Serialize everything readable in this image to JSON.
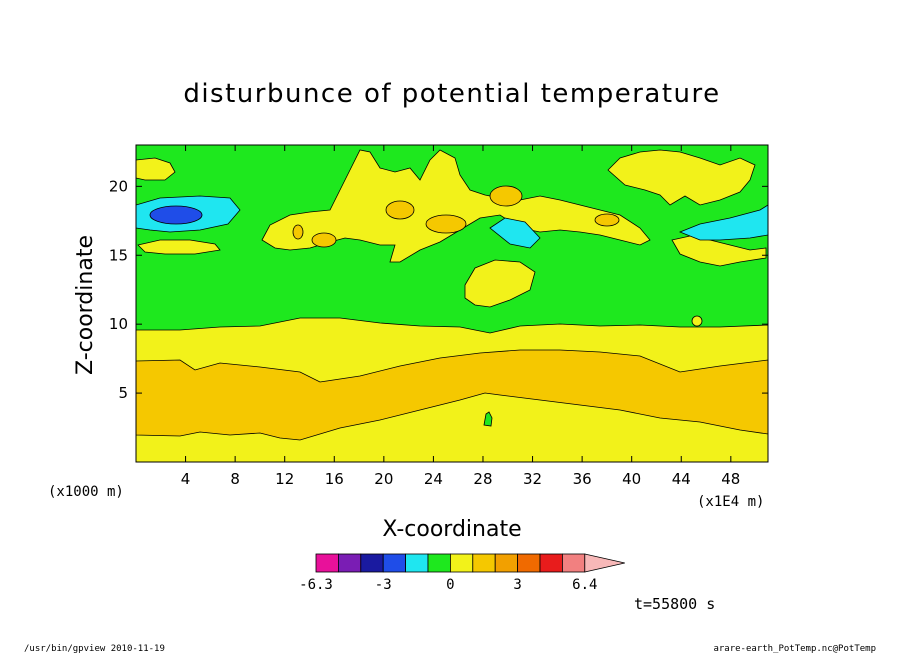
{
  "chart_data": {
    "type": "heatmap",
    "title": "disturbunce of potential temperature",
    "xlabel": "X-coordinate",
    "ylabel": "Z-coordinate",
    "x_unit": "(x1E4 m)",
    "y_unit": "(x1000 m)",
    "xlim": [
      0,
      51
    ],
    "ylim": [
      0,
      23
    ],
    "x_ticks": [
      "4",
      "8",
      "12",
      "16",
      "20",
      "24",
      "28",
      "32",
      "36",
      "40",
      "44",
      "48"
    ],
    "x_tick_values": [
      4,
      8,
      12,
      16,
      20,
      24,
      28,
      32,
      36,
      40,
      44,
      48
    ],
    "y_ticks": [
      "5",
      "10",
      "15",
      "20"
    ],
    "y_tick_values": [
      5,
      10,
      15,
      20
    ],
    "time_label": "t=55800 s",
    "colorbar": {
      "colors": [
        "#e8119a",
        "#7a1db4",
        "#1a1aa0",
        "#1f4de8",
        "#1fe6f0",
        "#1ee81e",
        "#f2f21a",
        "#f5c800",
        "#f2a000",
        "#f06a00",
        "#e81c1c",
        "#f28080",
        "#f7b8b8"
      ],
      "tick_labels": [
        "-6.3",
        "-3",
        "0",
        "3",
        "6.4"
      ]
    },
    "layers": [
      {
        "name": "band-low-yellow",
        "color": "#f2f21a",
        "z_top": 2.2
      },
      {
        "name": "band-orange",
        "color": "#f5c800",
        "z_bottom": 2.2,
        "z_top": 7.2
      },
      {
        "name": "band-upper-yellow",
        "color": "#f2f21a",
        "z_bottom": 7.2,
        "z_top": 9.8
      },
      {
        "name": "band-green",
        "color": "#1ee81e",
        "z_bottom": 9.8,
        "z_top": 23
      }
    ]
  },
  "footer": {
    "left": "/usr/bin/gpview   2010-11-19",
    "right": "arare-earth_PotTemp.nc@PotTemp"
  }
}
